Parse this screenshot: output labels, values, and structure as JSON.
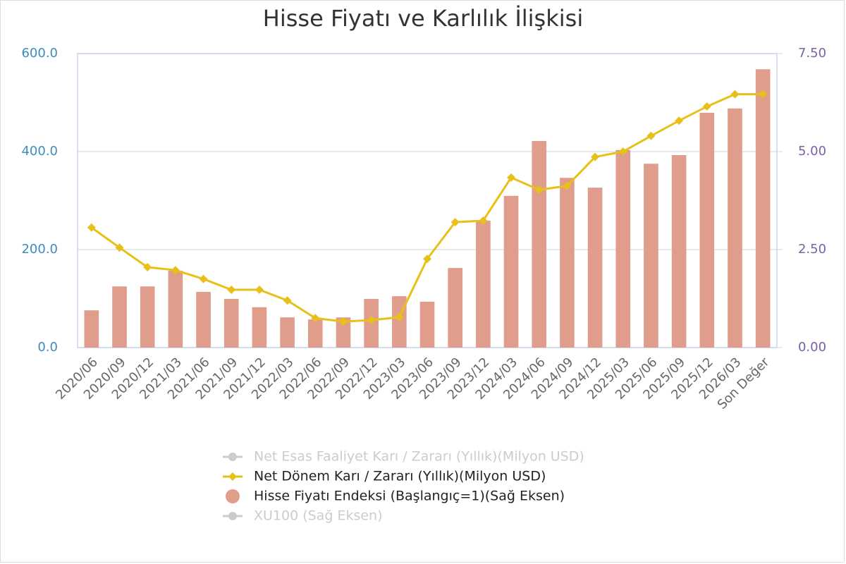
{
  "chart_data": {
    "type": "bar-line",
    "title": "Hisse Fiyatı ve Karlılık İlişkisi",
    "categories": [
      "2020/06",
      "2020/09",
      "2020/12",
      "2021/03",
      "2021/06",
      "2021/09",
      "2021/12",
      "2022/03",
      "2022/06",
      "2022/09",
      "2022/12",
      "2023/03",
      "2023/06",
      "2023/09",
      "2023/12",
      "2024/03",
      "2024/06",
      "2024/09",
      "2024/12",
      "2025/03",
      "2025/06",
      "2025/09",
      "2025/12",
      "2026/03",
      "Son Değer"
    ],
    "series": [
      {
        "name": "Net Esas Faaliyet Karı / Zararı (Yıllık)(Milyon USD)",
        "type": "line",
        "color": "#c8c8c8",
        "visible": false,
        "marker": "circle"
      },
      {
        "name": "Net Dönem Karı / Zararı (Yıllık)(Milyon USD)",
        "type": "line",
        "color": "#e8c01a",
        "visible": true,
        "marker": "diamond",
        "values": [
          245,
          204,
          164,
          158,
          140,
          118,
          118,
          96,
          60,
          53,
          56,
          62,
          181,
          256,
          259,
          347,
          322,
          330,
          389,
          400,
          432,
          463,
          492,
          517,
          517
        ]
      },
      {
        "name": "Hisse Fiyatı Endeksi (Başlangıç=1)(Sağ Eksen)",
        "type": "bar",
        "axis": "y2",
        "color": "#e09d8c",
        "visible": true,
        "marker": "circle",
        "values": [
          0.95,
          1.56,
          1.56,
          1.96,
          1.42,
          1.24,
          1.03,
          0.77,
          0.72,
          0.77,
          1.24,
          1.31,
          1.17,
          2.03,
          3.24,
          3.87,
          5.27,
          4.33,
          4.08,
          5.04,
          4.69,
          4.91,
          5.99,
          6.1,
          7.1
        ]
      },
      {
        "name": "XU100 (Sağ Eksen)",
        "type": "line",
        "axis": "y2",
        "color": "#c8c8c8",
        "visible": false,
        "marker": "circle"
      }
    ],
    "ylim": [
      0,
      600
    ],
    "yticks": [
      {
        "value": 0,
        "label": "0.0"
      },
      {
        "value": 200,
        "label": "200.0"
      },
      {
        "value": 400,
        "label": "400.0"
      },
      {
        "value": 600,
        "label": "600.0"
      }
    ],
    "y2lim": [
      0,
      7.5
    ],
    "y2ticks": [
      {
        "value": 0,
        "label": "0.00"
      },
      {
        "value": 2.5,
        "label": "2.50"
      },
      {
        "value": 5,
        "label": "5.00"
      },
      {
        "value": 7.5,
        "label": "7.50"
      }
    ],
    "grid": true,
    "legend": "bottom"
  }
}
